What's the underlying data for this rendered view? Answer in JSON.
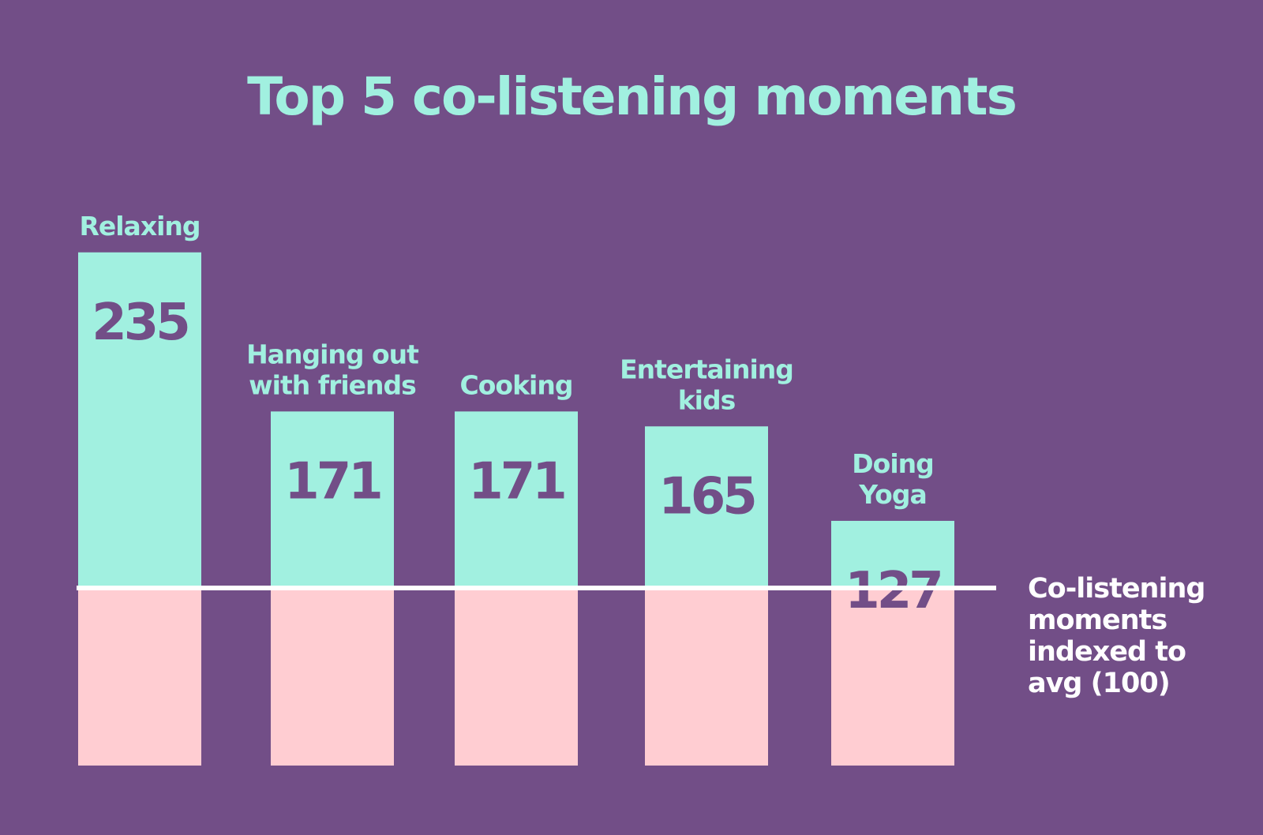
{
  "chart_data": {
    "type": "bar",
    "title": "Top 5 co-listening moments",
    "categories": [
      [
        "Relaxing"
      ],
      [
        "Hanging out",
        "with friends"
      ],
      [
        "Cooking"
      ],
      [
        "Entertaining",
        "kids"
      ],
      [
        "Doing",
        "Yoga"
      ]
    ],
    "values": [
      235,
      171,
      171,
      165,
      127
    ],
    "baseline": 100,
    "baseline_label": [
      "Co-listening",
      "moments",
      "indexed to",
      "avg (100)"
    ],
    "ylim": [
      0,
      235
    ],
    "grid": false,
    "legend": "none"
  },
  "colors": {
    "background": "#724e87",
    "bar_above": "#a1f0e0",
    "bar_below": "#ffcdd2",
    "baseline": "#ffffff",
    "text_accent": "#a1f0e0"
  }
}
